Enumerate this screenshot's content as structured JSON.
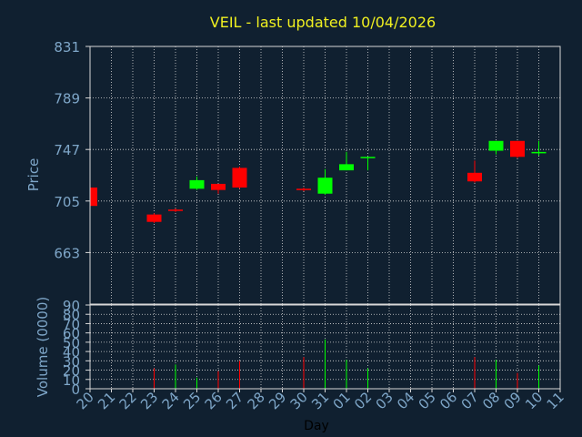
{
  "colors": {
    "background": "#102030",
    "title": "#f0f020",
    "axis_text": "#7ea6c8",
    "axis_line": "#d8d8d8",
    "grid": "#d8d8d8",
    "up": "#00ff00",
    "down": "#ff0000",
    "label": "#000000"
  },
  "chart_data": [
    {
      "type": "candlestick",
      "title": "VEIL - last updated 10/04/2026",
      "ylabel": "Price",
      "ylim": [
        621,
        831
      ],
      "yticks": [
        "831",
        "789",
        "747",
        "705",
        "663"
      ],
      "grid": true,
      "candles": [
        {
          "day": "20",
          "open": 716,
          "high": 717,
          "low": 700,
          "close": 701
        },
        {
          "day": "23",
          "open": 694,
          "high": 695,
          "low": 687,
          "close": 688
        },
        {
          "day": "24",
          "open": 698,
          "high": 699,
          "low": 696,
          "close": 697
        },
        {
          "day": "25",
          "open": 715,
          "high": 725,
          "low": 714,
          "close": 722
        },
        {
          "day": "26",
          "open": 719,
          "high": 719,
          "low": 711,
          "close": 714
        },
        {
          "day": "27",
          "open": 732,
          "high": 733,
          "low": 715,
          "close": 716
        },
        {
          "day": "30",
          "open": 715,
          "high": 716,
          "low": 713,
          "close": 714
        },
        {
          "day": "31",
          "open": 711,
          "high": 731,
          "low": 710,
          "close": 724
        },
        {
          "day": "01",
          "open": 730,
          "high": 745,
          "low": 730,
          "close": 735
        },
        {
          "day": "02",
          "open": 740,
          "high": 741,
          "low": 730,
          "close": 741
        },
        {
          "day": "07",
          "open": 728,
          "high": 738,
          "low": 720,
          "close": 721
        },
        {
          "day": "08",
          "open": 746,
          "high": 754,
          "low": 743,
          "close": 754
        },
        {
          "day": "09",
          "open": 754,
          "high": 754,
          "low": 740,
          "close": 741
        },
        {
          "day": "10",
          "open": 744,
          "high": 754,
          "low": 742,
          "close": 745
        }
      ]
    },
    {
      "type": "bar",
      "ylabel": "Volume (0000)",
      "xlabel": "Day",
      "ylim": [
        0,
        90
      ],
      "yticks": [
        "90",
        "80",
        "70",
        "60",
        "50",
        "40",
        "30",
        "20",
        "10",
        "0"
      ],
      "grid": true,
      "categories": [
        "20",
        "21",
        "22",
        "23",
        "24",
        "25",
        "26",
        "27",
        "28",
        "29",
        "30",
        "31",
        "01",
        "02",
        "03",
        "04",
        "05",
        "06",
        "07",
        "08",
        "09",
        "10",
        "11"
      ],
      "bars": [
        {
          "day": "23",
          "value": 22,
          "direction": "down"
        },
        {
          "day": "24",
          "value": 26,
          "direction": "up"
        },
        {
          "day": "25",
          "value": 12,
          "direction": "up"
        },
        {
          "day": "26",
          "value": 19,
          "direction": "down"
        },
        {
          "day": "27",
          "value": 30,
          "direction": "down"
        },
        {
          "day": "30",
          "value": 34,
          "direction": "down"
        },
        {
          "day": "31",
          "value": 53,
          "direction": "up"
        },
        {
          "day": "01",
          "value": 31,
          "direction": "up"
        },
        {
          "day": "02",
          "value": 22,
          "direction": "up"
        },
        {
          "day": "07",
          "value": 34,
          "direction": "down"
        },
        {
          "day": "08",
          "value": 31,
          "direction": "up"
        },
        {
          "day": "09",
          "value": 17,
          "direction": "down"
        },
        {
          "day": "10",
          "value": 25,
          "direction": "up"
        }
      ]
    }
  ]
}
